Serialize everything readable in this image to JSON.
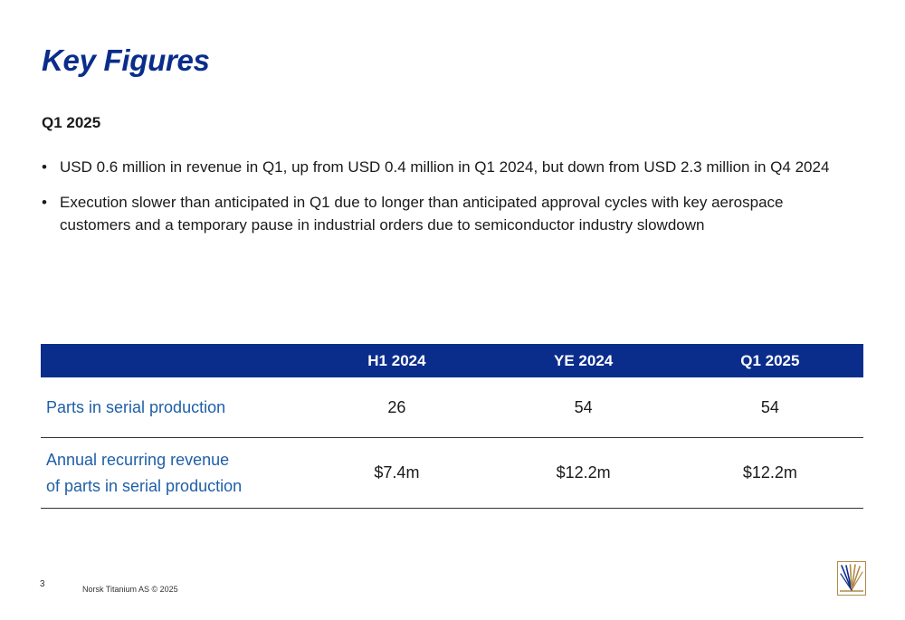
{
  "slide": {
    "title": "Key Figures",
    "section_heading": "Q1 2025",
    "bullet_char": "•",
    "bullets": [
      "USD 0.6 million in revenue in Q1, up from USD 0.4 million in Q1 2024, but down from USD 2.3 million in Q4 2024",
      "Execution slower than anticipated in Q1 due to longer than anticipated approval cycles with key aerospace customers and a temporary pause in industrial orders due to semiconductor industry slowdown"
    ]
  },
  "table": {
    "headers": [
      "",
      "H1 2024",
      "YE 2024",
      "Q1 2025"
    ],
    "rows": [
      {
        "label_lines": [
          "Parts in serial production"
        ],
        "values": [
          "26",
          "54",
          "54"
        ]
      },
      {
        "label_lines": [
          "Annual recurring revenue",
          "of parts in serial production"
        ],
        "values": [
          "$7.4m",
          "$12.2m",
          "$12.2m"
        ]
      }
    ]
  },
  "footer": {
    "page_number": "3",
    "copyright": "Norsk Titanium AS © 2025"
  },
  "colors": {
    "brand_blue": "#0a2d8c",
    "label_blue": "#1f5fa8",
    "logo_gold": "#b08a4a"
  },
  "icons": {
    "logo": "norsk-titanium-logo-icon"
  }
}
